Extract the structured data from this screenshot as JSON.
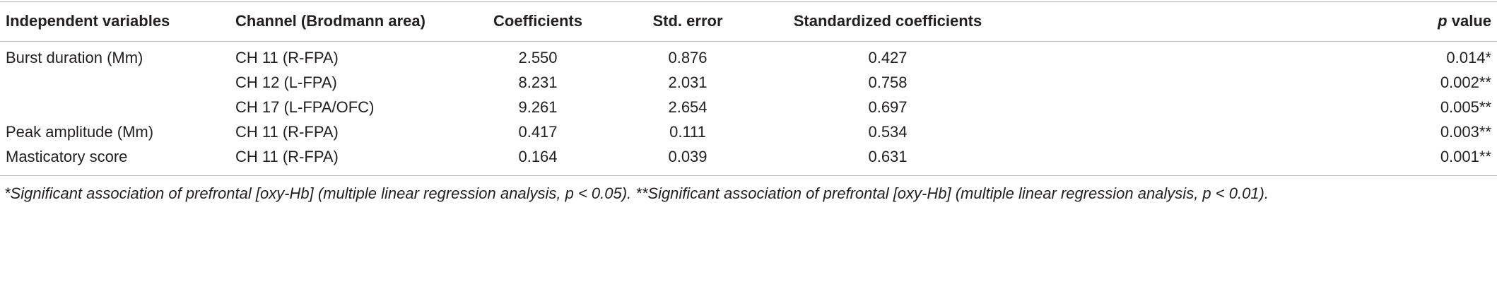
{
  "table": {
    "headers": [
      "Independent variables",
      "Channel (Brodmann area)",
      "Coefficients",
      "Std. error",
      "Standardized coefficients",
      [
        "p",
        "value"
      ]
    ],
    "rows": [
      [
        "Burst duration (Mm)",
        "CH 11 (R-FPA)",
        "2.550",
        "0.876",
        "0.427",
        "0.014*"
      ],
      [
        null,
        "CH 12 (L-FPA)",
        "8.231",
        "2.031",
        "0.758",
        "0.002**"
      ],
      [
        null,
        "CH 17 (L-FPA/OFC)",
        "9.261",
        "2.654",
        "0.697",
        "0.005**"
      ],
      [
        "Peak amplitude (Mm)",
        "CH 11 (R-FPA)",
        "0.417",
        "0.111",
        "0.534",
        "0.003**"
      ],
      [
        "Masticatory score",
        "CH 11 (R-FPA)",
        "0.164",
        "0.039",
        "0.631",
        "0.001**"
      ]
    ],
    "footnote": "*Significant association of prefrontal [oxy-Hb] (multiple linear regression analysis, p < 0.05). **Significant association of prefrontal [oxy-Hb] (multiple linear regression analysis, p < 0.01)."
  }
}
